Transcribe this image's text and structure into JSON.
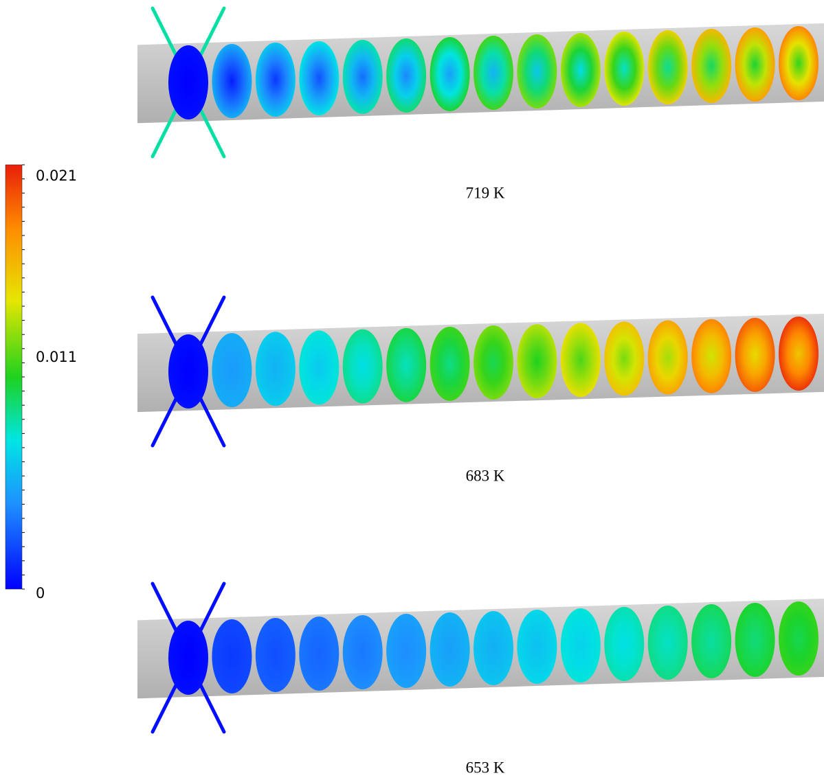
{
  "colorbar": {
    "labels": [
      "0.021",
      "0.011",
      "0"
    ]
  },
  "panels": [
    {
      "caption": "719 K"
    },
    {
      "caption": "683 K"
    },
    {
      "caption": "653 K"
    }
  ]
}
